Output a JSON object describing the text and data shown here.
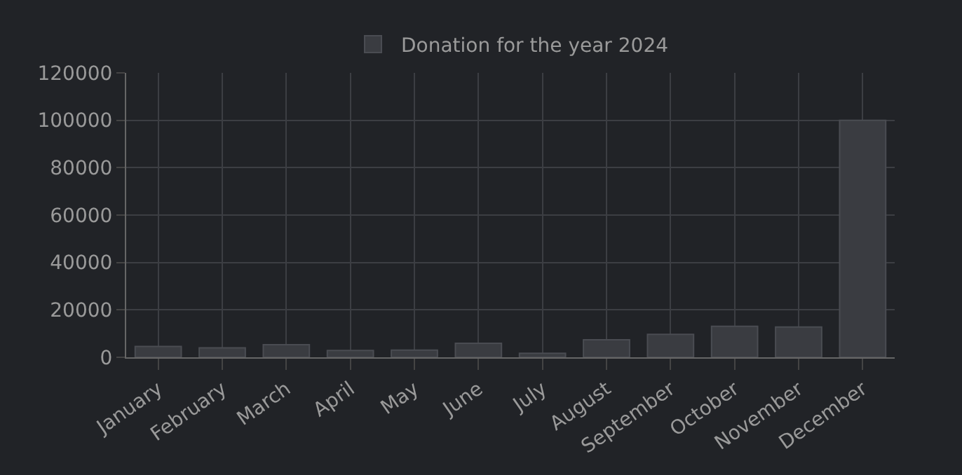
{
  "chart_data": {
    "type": "bar",
    "categories": [
      "January",
      "February",
      "March",
      "April",
      "May",
      "June",
      "July",
      "August",
      "September",
      "October",
      "November",
      "December"
    ],
    "series": [
      {
        "name": "Donation for the year 2024",
        "color": "#3a3c41",
        "values": [
          4600,
          4000,
          5300,
          2900,
          3000,
          5900,
          1700,
          7400,
          9700,
          13100,
          12800,
          100000
        ]
      }
    ],
    "ylim": [
      0,
      120000
    ],
    "yticks": [
      0,
      20000,
      40000,
      60000,
      80000,
      100000,
      120000
    ],
    "grid": true,
    "legend": "top"
  }
}
